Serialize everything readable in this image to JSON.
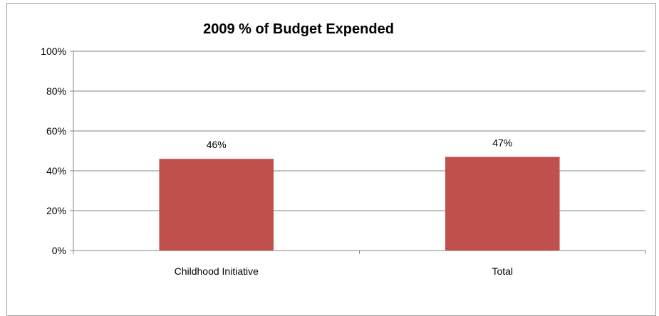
{
  "chart_data": {
    "type": "bar",
    "title": "2009 % of Budget Expended",
    "categories": [
      "Childhood Initiative",
      "Total"
    ],
    "values": [
      46,
      47
    ],
    "data_labels": [
      "46%",
      "47%"
    ],
    "y_ticks": [
      "0%",
      "20%",
      "40%",
      "60%",
      "80%",
      "100%"
    ],
    "ylim": [
      0,
      100
    ],
    "grid": true,
    "legend": "none",
    "bar_color": "#c0504d"
  }
}
